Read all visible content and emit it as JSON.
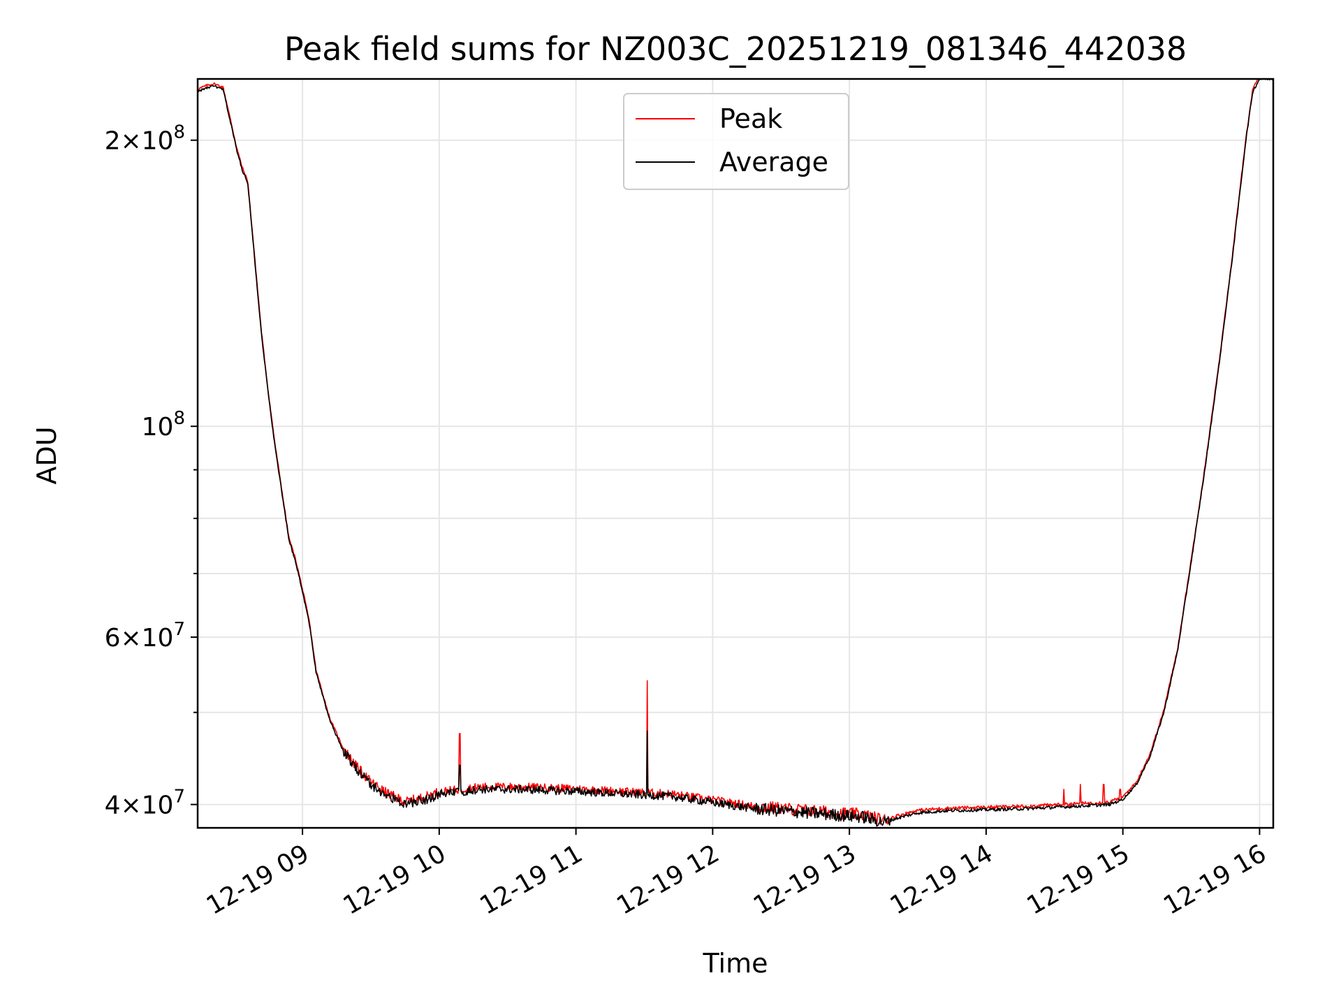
{
  "chart_data": {
    "type": "line",
    "title": "Peak field sums for NZ003C_20251219_081346_442038",
    "xlabel": "Time",
    "ylabel": "ADU",
    "yscale": "log",
    "ylim": [
      37800000,
      232000000
    ],
    "xlim_hours": [
      8.2333,
      16.1
    ],
    "grid": true,
    "legend_position": "top-center",
    "x_ticks": [
      {
        "value": 9,
        "label": "12-19 09"
      },
      {
        "value": 10,
        "label": "12-19 10"
      },
      {
        "value": 11,
        "label": "12-19 11"
      },
      {
        "value": 12,
        "label": "12-19 12"
      },
      {
        "value": 13,
        "label": "12-19 13"
      },
      {
        "value": 14,
        "label": "12-19 14"
      },
      {
        "value": 15,
        "label": "12-19 15"
      },
      {
        "value": 16,
        "label": "12-19 16"
      }
    ],
    "y_major_ticks": [
      {
        "value": 40000000,
        "mantissa": "4",
        "exponent": "7"
      },
      {
        "value": 60000000,
        "mantissa": "6",
        "exponent": "7"
      },
      {
        "value": 100000000,
        "mantissa": "",
        "exponent": "8"
      },
      {
        "value": 200000000,
        "mantissa": "2",
        "exponent": "8"
      }
    ],
    "y_minor_ticks": [
      50000000,
      70000000,
      80000000,
      90000000
    ],
    "series": [
      {
        "name": "Peak",
        "color": "#ff0000",
        "spikes": [
          [
            10.15,
            47500000
          ],
          [
            11.52,
            54000000
          ],
          [
            14.57,
            41500000
          ],
          [
            14.69,
            42000000
          ],
          [
            14.86,
            42000000
          ],
          [
            14.98,
            41500000
          ]
        ]
      },
      {
        "name": "Average",
        "color": "#000000",
        "spikes": [
          [
            10.15,
            44000000
          ],
          [
            11.52,
            47800000
          ]
        ]
      }
    ],
    "base_curve": [
      [
        8.2333,
        225000000
      ],
      [
        8.3,
        227000000
      ],
      [
        8.35,
        228000000
      ],
      [
        8.42,
        226000000
      ],
      [
        8.47,
        210000000
      ],
      [
        8.52,
        195000000
      ],
      [
        8.56,
        186000000
      ],
      [
        8.6,
        180000000
      ],
      [
        8.65,
        150000000
      ],
      [
        8.7,
        125000000
      ],
      [
        8.75,
        108000000
      ],
      [
        8.8,
        95000000
      ],
      [
        8.85,
        85000000
      ],
      [
        8.9,
        76000000
      ],
      [
        8.95,
        72000000
      ],
      [
        9.0,
        67000000
      ],
      [
        9.05,
        62000000
      ],
      [
        9.1,
        55000000
      ],
      [
        9.2,
        49000000
      ],
      [
        9.3,
        45500000
      ],
      [
        9.4,
        43500000
      ],
      [
        9.5,
        42000000
      ],
      [
        9.6,
        41000000
      ],
      [
        9.75,
        40000000
      ],
      [
        9.9,
        40500000
      ],
      [
        10.0,
        41000000
      ],
      [
        10.3,
        41500000
      ],
      [
        10.6,
        41500000
      ],
      [
        11.0,
        41300000
      ],
      [
        11.4,
        41000000
      ],
      [
        11.7,
        40800000
      ],
      [
        12.0,
        40200000
      ],
      [
        12.3,
        39600000
      ],
      [
        12.6,
        39300000
      ],
      [
        12.9,
        39000000
      ],
      [
        13.1,
        38800000
      ],
      [
        13.25,
        38300000
      ],
      [
        13.35,
        38700000
      ],
      [
        13.5,
        39200000
      ],
      [
        13.7,
        39400000
      ],
      [
        14.0,
        39500000
      ],
      [
        14.3,
        39600000
      ],
      [
        14.6,
        39800000
      ],
      [
        14.9,
        40000000
      ],
      [
        15.0,
        40500000
      ],
      [
        15.1,
        42000000
      ],
      [
        15.2,
        45000000
      ],
      [
        15.3,
        50000000
      ],
      [
        15.4,
        58000000
      ],
      [
        15.5,
        72000000
      ],
      [
        15.6,
        90000000
      ],
      [
        15.7,
        115000000
      ],
      [
        15.8,
        150000000
      ],
      [
        15.9,
        200000000
      ],
      [
        15.95,
        225000000
      ],
      [
        16.0,
        232000000
      ],
      [
        16.1,
        232000000
      ]
    ],
    "noise": [
      {
        "from": 9.3,
        "to": 10.0,
        "amp": 0.012
      },
      {
        "from": 10.0,
        "to": 12.3,
        "amp": 0.01
      },
      {
        "from": 12.3,
        "to": 13.3,
        "amp": 0.015
      },
      {
        "from": 13.3,
        "to": 15.0,
        "amp": 0.004
      }
    ]
  }
}
